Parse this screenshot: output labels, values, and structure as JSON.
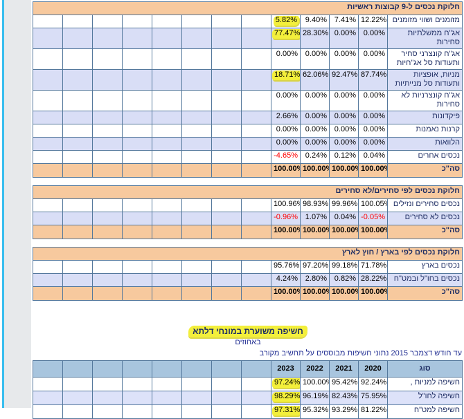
{
  "colors": {
    "highlight_yellow": "#F3EF3B",
    "section_header_orange": "#F7C99E",
    "row_lavender": "#D9DEF6",
    "delta_header_blue": "#A8C5DE",
    "delta_row_lavender": "#DDE2F9",
    "grid_border": "#54789C",
    "label_navy": "#1F2E64",
    "note_blue": "#222F93",
    "negative_red": "#FF0000",
    "accent_cyan_stripe": "#38BEEF",
    "left_gutter_gray": "#E7E9EB"
  },
  "tables": [
    {
      "title": "חלוקת נכסים ל-9 קבוצות ראשיות",
      "rows": [
        {
          "label": "מזומנים ושווי מזומנים",
          "values": [
            "12.22%",
            "7.41%",
            "9.40%",
            "5.82%"
          ],
          "hl": [
            false,
            false,
            false,
            true
          ],
          "red": [
            false,
            false,
            false,
            false
          ]
        },
        {
          "label": "אג\"ח ממשלתיות סחירות",
          "values": [
            "0.00%",
            "0.00%",
            "28.30%",
            "77.47%"
          ],
          "hl": [
            false,
            false,
            false,
            true
          ],
          "red": [
            false,
            false,
            false,
            false
          ]
        },
        {
          "label": "אג\"ח קונצרני סחיר ותעודות סל אג\"חיות",
          "values": [
            "0.00%",
            "0.00%",
            "0.00%",
            "0.00%"
          ],
          "hl": [
            false,
            false,
            false,
            false
          ],
          "red": [
            false,
            false,
            false,
            false
          ]
        },
        {
          "label": "מניות, אופציות ותעודות סל מנייתיות",
          "values": [
            "87.74%",
            "92.47%",
            "62.06%",
            "18.71%"
          ],
          "hl": [
            false,
            false,
            false,
            true
          ],
          "red": [
            false,
            false,
            false,
            false
          ]
        },
        {
          "label": "אג\"ח קונצרניות לא סחירות",
          "values": [
            "0.00%",
            "0.00%",
            "0.00%",
            "0.00%"
          ],
          "hl": [
            false,
            false,
            false,
            false
          ],
          "red": [
            false,
            false,
            false,
            false
          ]
        },
        {
          "label": "פיקדונות",
          "values": [
            "0.00%",
            "0.00%",
            "0.00%",
            "2.66%"
          ],
          "hl": [
            false,
            false,
            false,
            false
          ],
          "red": [
            false,
            false,
            false,
            false
          ]
        },
        {
          "label": "קרנות נאמנות",
          "values": [
            "0.00%",
            "0.00%",
            "0.00%",
            "0.00%"
          ],
          "hl": [
            false,
            false,
            false,
            false
          ],
          "red": [
            false,
            false,
            false,
            false
          ]
        },
        {
          "label": "הלוואות",
          "values": [
            "0.00%",
            "0.00%",
            "0.00%",
            "0.00%"
          ],
          "hl": [
            false,
            false,
            false,
            false
          ],
          "red": [
            false,
            false,
            false,
            false
          ]
        },
        {
          "label": "נכסים אחרים",
          "values": [
            "0.04%",
            "0.12%",
            "0.24%",
            "-4.65%"
          ],
          "hl": [
            false,
            false,
            false,
            false
          ],
          "red": [
            false,
            false,
            false,
            true
          ]
        }
      ],
      "total": {
        "label": "סה\"כ",
        "values": [
          "100.00%",
          "100.00%",
          "100.00%",
          "100.00%"
        ]
      }
    },
    {
      "title": "חלוקת נכסים לפי סחירים/לא סחירים",
      "rows": [
        {
          "label": "נכסים סחירים ונזילים",
          "values": [
            "100.05%",
            "99.96%",
            "98.93%",
            "100.96%"
          ],
          "hl": [
            false,
            false,
            false,
            false
          ],
          "red": [
            false,
            false,
            false,
            false
          ]
        },
        {
          "label": "נכסים לא סחירים",
          "values": [
            "-0.05%",
            "0.04%",
            "1.07%",
            "-0.96%"
          ],
          "hl": [
            false,
            false,
            false,
            false
          ],
          "red": [
            true,
            false,
            false,
            true
          ]
        }
      ],
      "total": {
        "label": "סה\"כ",
        "values": [
          "100.00%",
          "100.00%",
          "100.00%",
          "100.00%"
        ]
      }
    },
    {
      "title": "חלוקת נכסים לפי בארץ / חוץ לארץ",
      "rows": [
        {
          "label": "נכסים בארץ",
          "values": [
            "71.78%",
            "99.18%",
            "97.20%",
            "95.76%"
          ],
          "hl": [
            false,
            false,
            false,
            false
          ],
          "red": [
            false,
            false,
            false,
            false
          ]
        },
        {
          "label": "נכסים בחו\"ל ובמט\"ח",
          "values": [
            "28.22%",
            "0.82%",
            "2.80%",
            "4.24%"
          ],
          "hl": [
            false,
            false,
            false,
            false
          ],
          "red": [
            false,
            false,
            false,
            false
          ]
        }
      ],
      "total": {
        "label": "סה\"כ",
        "values": [
          "100.00%",
          "100.00%",
          "100.00%",
          "100.00%"
        ]
      }
    }
  ],
  "delta": {
    "title": "חשיפה משוערת במונחי דלתא",
    "subtitle": "באחוזים",
    "note": "עד חודש דצמבר 2015 נתוני חשיפות מבוססים על תחשיב מקורב",
    "table": {
      "type_header": "סוג",
      "years": [
        "2020",
        "2021",
        "2022",
        "2023"
      ],
      "rows": [
        {
          "label": "חשיפה למניות ,",
          "values": [
            "92.24%",
            "95.42%",
            "100.00%",
            "97.24%"
          ],
          "hl": [
            false,
            false,
            false,
            true
          ],
          "red": [
            false,
            false,
            false,
            false
          ]
        },
        {
          "label": "חשיפה לחו\"ל",
          "values": [
            "75.95%",
            "82.43%",
            "96.19%",
            "98.29%"
          ],
          "hl": [
            false,
            false,
            false,
            true
          ],
          "red": [
            false,
            false,
            false,
            false
          ]
        },
        {
          "label": "חשיפה למט\"ח",
          "values": [
            "81.22%",
            "93.29%",
            "95.32%",
            "97.31%"
          ],
          "hl": [
            false,
            false,
            false,
            true
          ],
          "red": [
            false,
            false,
            false,
            false
          ]
        }
      ]
    }
  }
}
